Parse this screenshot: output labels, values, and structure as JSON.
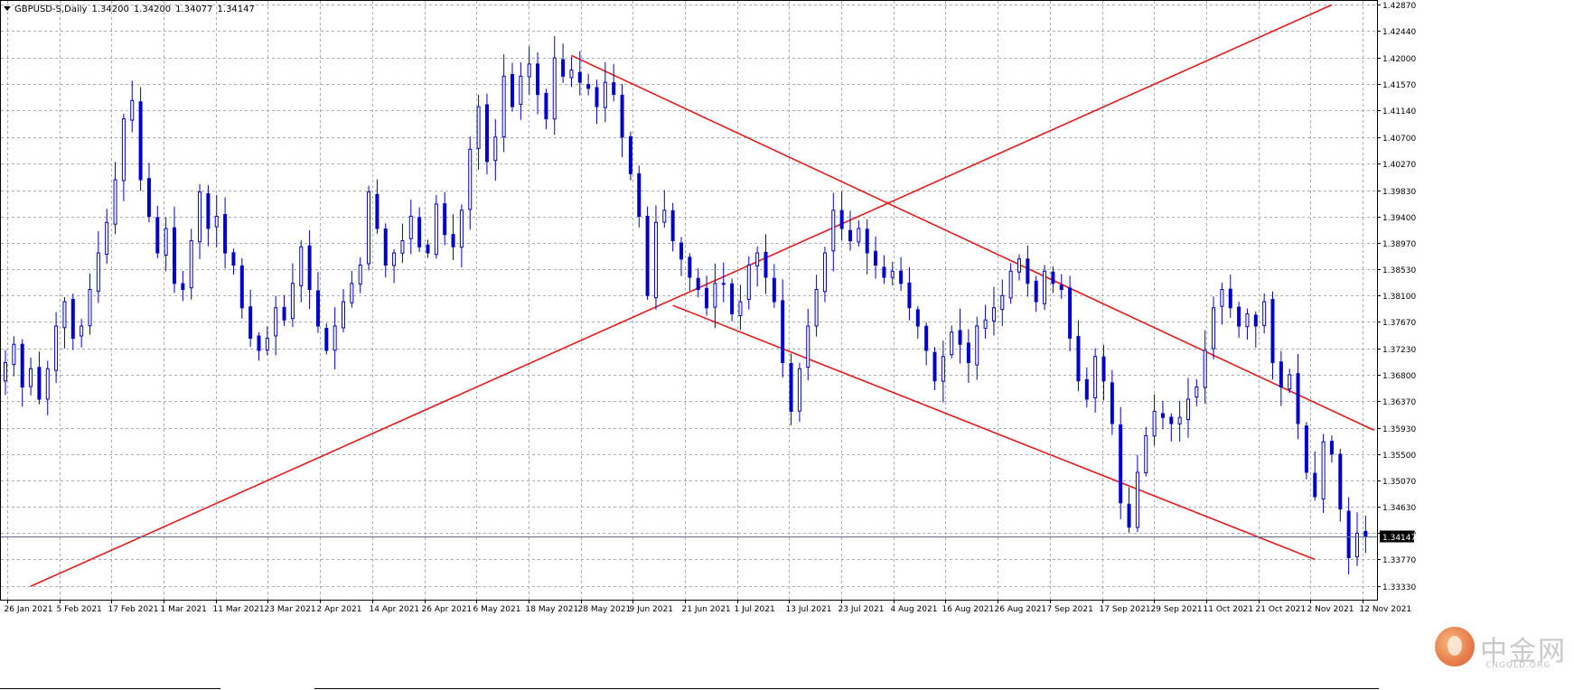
{
  "header": {
    "symbol": "GBPUSD-S,Daily",
    "open": "1.34200",
    "high": "1.34200",
    "low": "1.34077",
    "close": "1.34147"
  },
  "colors": {
    "bull": "#0000cc",
    "bear": "#0000cc",
    "trendline": "#e31b1b",
    "grid": "#a6adb8",
    "axis": "#000000",
    "price_box": "#000000"
  },
  "watermark": {
    "cn": "中金网",
    "en": "CNGOLD.ORG"
  },
  "chart_data": {
    "type": "candlestick",
    "title": "GBPUSD-S,Daily",
    "current_price": 1.34147,
    "current_price_label": "1.34147",
    "ylim": [
      1.3311,
      1.4295
    ],
    "y_ticks": [
      1.4287,
      1.4244,
      1.42,
      1.4157,
      1.4114,
      1.407,
      1.4027,
      1.3983,
      1.394,
      1.3897,
      1.3853,
      1.381,
      1.3767,
      1.3723,
      1.368,
      1.3637,
      1.3593,
      1.355,
      1.3507,
      1.3463,
      1.342,
      1.3377,
      1.3333
    ],
    "y_tick_labels": [
      "1.42870",
      "1.42440",
      "1.42000",
      "1.41570",
      "1.41140",
      "1.40700",
      "1.40270",
      "1.39830",
      "1.39400",
      "1.38970",
      "1.38530",
      "1.38100",
      "1.37670",
      "1.37230",
      "1.36800",
      "1.36370",
      "1.35930",
      "1.35500",
      "1.35070",
      "1.34630",
      "1.34200",
      "1.33770",
      "1.33330"
    ],
    "x_tick_labels": [
      "26 Jan 2021",
      "5 Feb 2021",
      "17 Feb 2021",
      "1 Mar 2021",
      "11 Mar 2021",
      "23 Mar 2021",
      "2 Apr 2021",
      "14 Apr 2021",
      "26 Apr 2021",
      "6 May 2021",
      "18 May 2021",
      "28 May 2021",
      "9 Jun 2021",
      "21 Jun 2021",
      "1 Jul 2021",
      "13 Jul 2021",
      "23 Jul 2021",
      "4 Aug 2021",
      "16 Aug 2021",
      "26 Aug 2021",
      "7 Sep 2021",
      "17 Sep 2021",
      "29 Sep 2021",
      "11 Oct 2021",
      "21 Oct 2021",
      "2 Nov 2021",
      "12 Nov 2021"
    ],
    "close_path": [
      1.37,
      1.373,
      1.366,
      1.369,
      1.364,
      1.369,
      1.376,
      1.38,
      1.374,
      1.376,
      1.382,
      1.388,
      1.393,
      1.4,
      1.41,
      1.413,
      1.4,
      1.394,
      1.388,
      1.392,
      1.383,
      1.382,
      1.39,
      1.398,
      1.392,
      1.394,
      1.388,
      1.386,
      1.379,
      1.374,
      1.372,
      1.374,
      1.379,
      1.377,
      1.383,
      1.389,
      1.382,
      1.376,
      1.372,
      1.376,
      1.38,
      1.383,
      1.386,
      1.398,
      1.392,
      1.386,
      1.388,
      1.39,
      1.394,
      1.389,
      1.388,
      1.396,
      1.391,
      1.389,
      1.395,
      1.405,
      1.412,
      1.403,
      1.407,
      1.417,
      1.412,
      1.417,
      1.419,
      1.414,
      1.41,
      1.42,
      1.417,
      1.418,
      1.416,
      1.415,
      1.412,
      1.416,
      1.414,
      1.407,
      1.401,
      1.394,
      1.381,
      1.393,
      1.395,
      1.39,
      1.387,
      1.384,
      1.382,
      1.379,
      1.383,
      1.383,
      1.378,
      1.38,
      1.386,
      1.388,
      1.384,
      1.38,
      1.37,
      1.362,
      1.369,
      1.376,
      1.382,
      1.388,
      1.395,
      1.392,
      1.39,
      1.392,
      1.388,
      1.386,
      1.384,
      1.385,
      1.383,
      1.379,
      1.376,
      1.372,
      1.367,
      1.371,
      1.375,
      1.373,
      1.37,
      1.376,
      1.377,
      1.379,
      1.381,
      1.385,
      1.387,
      1.383,
      1.38,
      1.385,
      1.383,
      1.382,
      1.374,
      1.367,
      1.364,
      1.371,
      1.367,
      1.36,
      1.347,
      1.343,
      1.352,
      1.358,
      1.362,
      1.361,
      1.36,
      1.361,
      1.364,
      1.366,
      1.372,
      1.379,
      1.382,
      1.379,
      1.376,
      1.378,
      1.376,
      1.38,
      1.37,
      1.366,
      1.368,
      1.36,
      1.352,
      1.348,
      1.357,
      1.355,
      1.346,
      1.338,
      1.342,
      1.3415
    ]
  }
}
